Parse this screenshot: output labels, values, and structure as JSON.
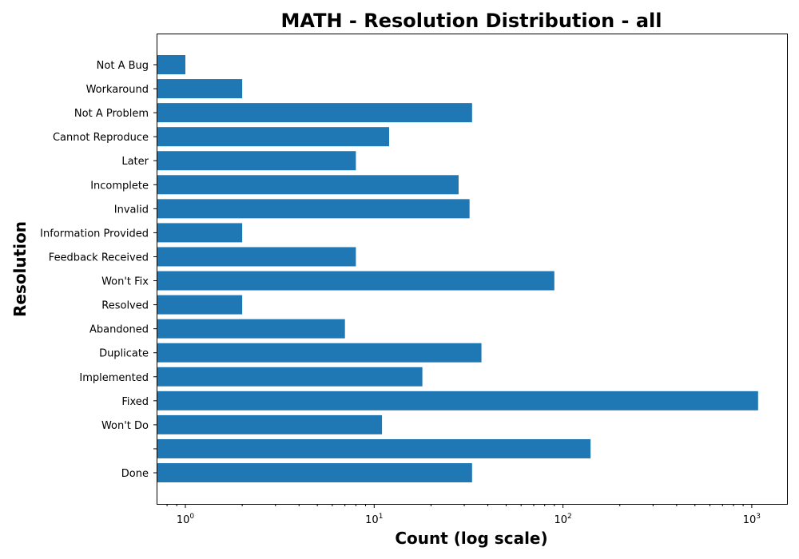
{
  "chart_data": {
    "type": "bar",
    "orientation": "horizontal",
    "title": "MATH - Resolution Distribution - all",
    "xlabel": "Count (log scale)",
    "ylabel": "Resolution",
    "x_scale": "log",
    "xlim": [
      0.7,
      1500
    ],
    "x_ticks": [
      {
        "value": 1,
        "base": "10",
        "exp": "0"
      },
      {
        "value": 10,
        "base": "10",
        "exp": "1"
      },
      {
        "value": 100,
        "base": "10",
        "exp": "2"
      },
      {
        "value": 1000,
        "base": "10",
        "exp": "3"
      }
    ],
    "categories": [
      "Not A Bug",
      "Workaround",
      "Not A Problem",
      "Cannot Reproduce",
      "Later",
      "Incomplete",
      "Invalid",
      "Information Provided",
      "Feedback Received",
      "Won't Fix",
      "Resolved",
      "Abandoned",
      "Duplicate",
      "Implemented",
      "Fixed",
      "Won't Do",
      "",
      "Done"
    ],
    "values": [
      1,
      2,
      33,
      12,
      8,
      28,
      32,
      2,
      8,
      90,
      2,
      7,
      37,
      18,
      1080,
      11,
      140,
      33
    ],
    "grid": false,
    "legend": "none",
    "bar_color": "#1f77b4"
  }
}
